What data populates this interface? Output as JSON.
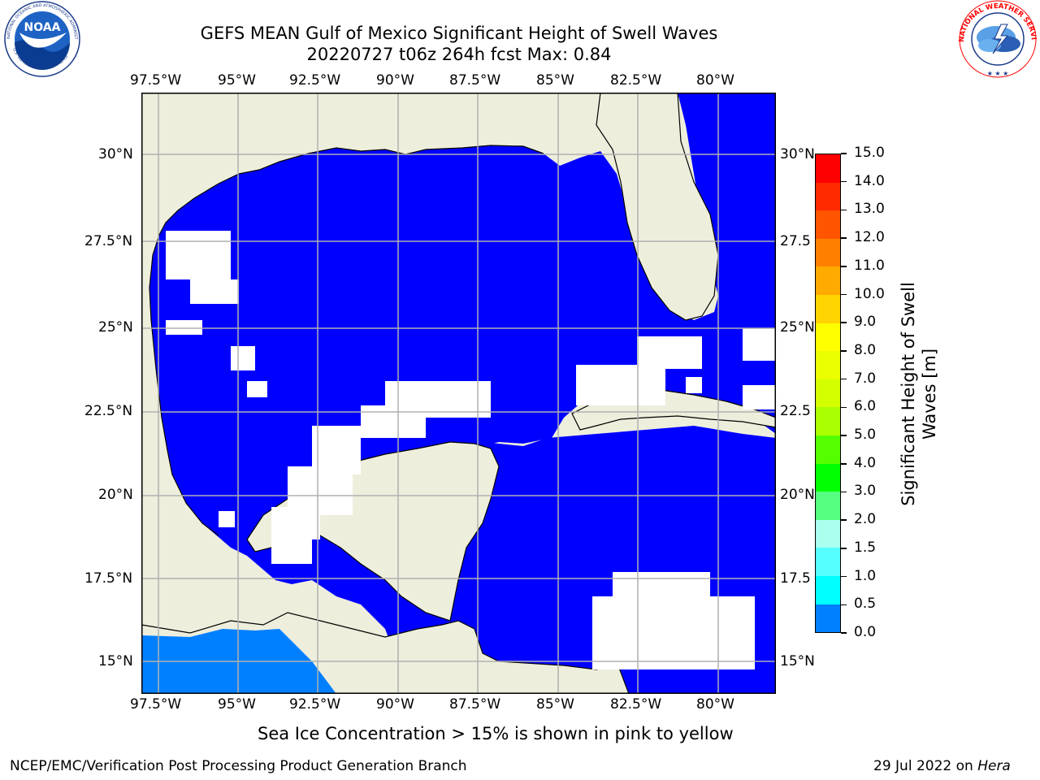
{
  "header": {
    "title_line1": "GEFS MEAN Gulf of Mexico Significant Height of Swell Waves",
    "title_line2": "20220727 t06z 264h fcst   Max: 0.84"
  },
  "logos": {
    "left": {
      "name": "NOAA",
      "ring_text": "NATIONAL OCEANIC AND ATMOSPHERIC ADMINISTRATION",
      "bottom_text": "U.S. DEPARTMENT OF COMMERCE"
    },
    "right": {
      "ring_text": "NATIONAL WEATHER SERVICE"
    }
  },
  "map": {
    "lon_labels": [
      "97.5°W",
      "95°W",
      "92.5°W",
      "90°W",
      "87.5°W",
      "85°W",
      "82.5°W",
      "80°W"
    ],
    "lat_labels": [
      "30°N",
      "27.5°N",
      "25°N",
      "22.5°N",
      "20°N",
      "17.5°N",
      "15°N"
    ],
    "lat_labels_right": [
      "30°N",
      "27.5",
      "25°N",
      "22.5",
      "20°N",
      "17.5",
      "15°N"
    ],
    "colors": {
      "land": "#eeeedd",
      "water_low": "#0000ff",
      "water_mid": "#0080ff",
      "gridline": "#b0b0b0"
    }
  },
  "colorbar": {
    "label_line1": "Significant Height of Swell",
    "label_line2": "Waves [m]",
    "ticks": [
      "15.0",
      "14.0",
      "13.0",
      "12.0",
      "11.0",
      "10.0",
      "9.0",
      "8.0",
      "7.0",
      "6.0",
      "5.0",
      "4.0",
      "3.0",
      "2.0",
      "1.5",
      "1.0",
      "0.5",
      "0.0"
    ],
    "colors": [
      "#ff0000",
      "#ff2a00",
      "#ff5500",
      "#ff8000",
      "#ffaa00",
      "#ffd400",
      "#ffff00",
      "#eaff00",
      "#d4ff00",
      "#aaff00",
      "#55ff00",
      "#00ff00",
      "#55ff80",
      "#aaffee",
      "#55ffff",
      "#00ffff",
      "#0080ff",
      "#0000ff"
    ]
  },
  "footer": {
    "note": "Sea Ice Concentration > 15% is shown in pink to yellow",
    "left": "NCEP/EMC/Verification Post Processing Product Generation Branch",
    "date": "29 Jul 2022 on",
    "host": "Hera"
  }
}
